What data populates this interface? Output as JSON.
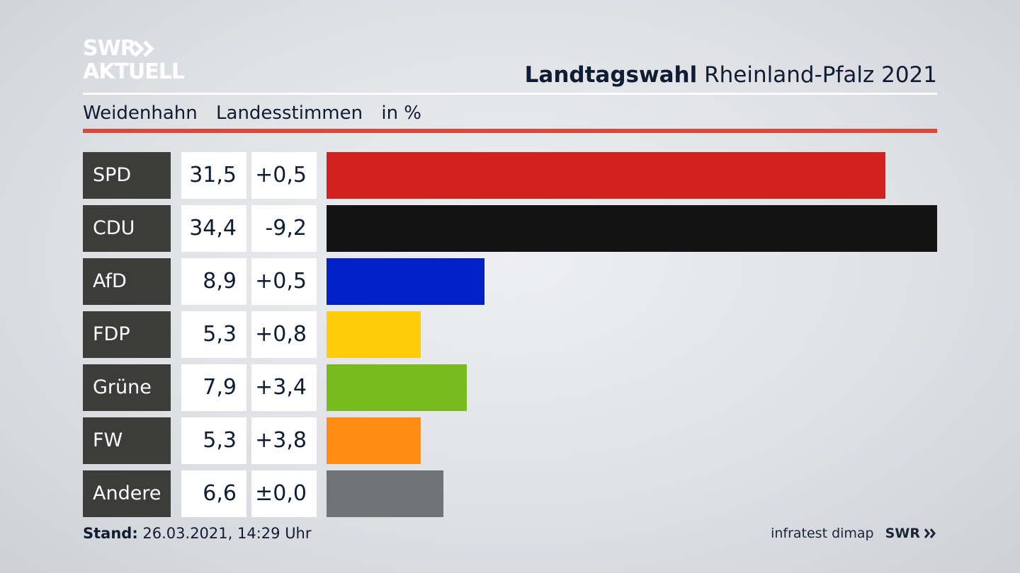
{
  "logo": {
    "line1": "SWR",
    "line2": "AKTUELL"
  },
  "header": {
    "title_bold": "Landtagswahl",
    "title_rest": "Rheinland-Pfalz 2021"
  },
  "subtitle": {
    "place": "Weidenhahn",
    "measure": "Landesstimmen",
    "unit": "in %"
  },
  "chart_data": {
    "type": "bar",
    "orientation": "horizontal",
    "categories": [
      "SPD",
      "CDU",
      "AfD",
      "FDP",
      "Grüne",
      "FW",
      "Andere"
    ],
    "values": [
      31.5,
      34.4,
      8.9,
      5.3,
      7.9,
      5.3,
      6.6
    ],
    "value_labels": [
      "31,5",
      "34,4",
      "8,9",
      "5,3",
      "7,9",
      "5,3",
      "6,6"
    ],
    "diff_labels": [
      "+0,5",
      "-9,2",
      "+0,5",
      "+0,8",
      "+3,4",
      "+3,8",
      "±0,0"
    ],
    "colors": [
      "#d52020",
      "#131313",
      "#0021c7",
      "#fdcd0a",
      "#78bb1e",
      "#fe8d16",
      "#717273"
    ],
    "xlim": [
      0,
      34.4
    ],
    "grid": false,
    "legend": "none"
  },
  "footer": {
    "stand_label": "Stand:",
    "stand_value": "26.03.2021, 14:29 Uhr"
  },
  "source": {
    "institute": "infratest dimap",
    "broadcaster": "SWR"
  }
}
